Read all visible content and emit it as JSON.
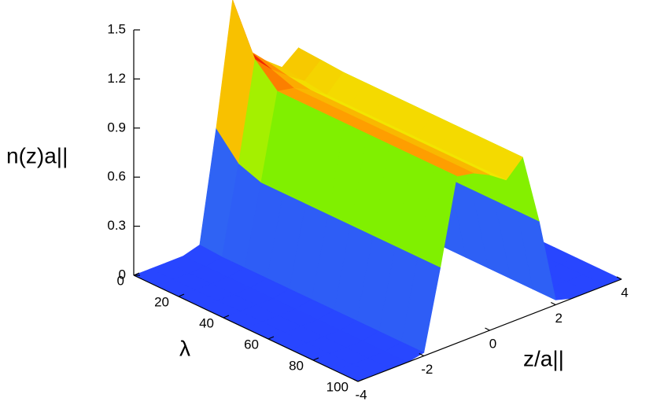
{
  "chart_data": {
    "type": "surface",
    "zlabel": "n(z)a||",
    "xlabel": "λ",
    "ylabel": "z/a||",
    "x": [
      0,
      10,
      20,
      30,
      40,
      50,
      60,
      70,
      80,
      90,
      100
    ],
    "y": [
      -4,
      -3.5,
      -3,
      -2.5,
      -2,
      -1.5,
      -1,
      -0.5,
      0,
      0.5,
      1,
      1.5,
      2,
      2.5,
      3,
      3.5,
      4
    ],
    "values": [
      [
        0,
        0,
        0,
        0,
        0.03,
        0.7,
        1.45,
        1.1,
        1.0,
        0.92,
        1.0,
        0.55,
        0.03,
        0,
        0,
        0,
        0
      ],
      [
        0,
        0,
        0,
        0,
        0.02,
        0.55,
        1.15,
        1.05,
        0.97,
        0.9,
        0.99,
        0.55,
        0.03,
        0,
        0,
        0,
        0
      ],
      [
        0,
        0,
        0,
        0,
        0.02,
        0.5,
        1.02,
        1.0,
        0.95,
        0.88,
        0.98,
        0.55,
        0.03,
        0,
        0,
        0,
        0
      ],
      [
        0,
        0,
        0,
        0,
        0.02,
        0.5,
        1.02,
        1.0,
        0.95,
        0.88,
        0.98,
        0.55,
        0.03,
        0,
        0,
        0,
        0
      ],
      [
        0,
        0,
        0,
        0,
        0.02,
        0.5,
        1.02,
        1.0,
        0.95,
        0.88,
        0.98,
        0.55,
        0.03,
        0,
        0,
        0,
        0
      ],
      [
        0,
        0,
        0,
        0,
        0.02,
        0.5,
        1.02,
        1.0,
        0.95,
        0.88,
        0.98,
        0.55,
        0.03,
        0,
        0,
        0,
        0
      ],
      [
        0,
        0,
        0,
        0,
        0.02,
        0.5,
        1.02,
        1.0,
        0.95,
        0.88,
        0.98,
        0.55,
        0.03,
        0,
        0,
        0,
        0
      ],
      [
        0,
        0,
        0,
        0,
        0.02,
        0.5,
        1.02,
        1.0,
        0.95,
        0.88,
        0.98,
        0.55,
        0.03,
        0,
        0,
        0,
        0
      ],
      [
        0,
        0,
        0,
        0,
        0.02,
        0.5,
        1.02,
        1.0,
        0.95,
        0.88,
        0.98,
        0.55,
        0.03,
        0,
        0,
        0,
        0
      ],
      [
        0,
        0,
        0,
        0,
        0.02,
        0.5,
        1.02,
        1.0,
        0.95,
        0.88,
        0.98,
        0.55,
        0.03,
        0,
        0,
        0,
        0
      ],
      [
        0,
        0,
        0,
        0,
        0.02,
        0.5,
        1.02,
        1.0,
        0.95,
        0.88,
        0.98,
        0.55,
        0.03,
        0,
        0,
        0,
        0
      ]
    ],
    "xlim": [
      0,
      100
    ],
    "ylim": [
      -4,
      4
    ],
    "zlim": [
      0,
      1.5
    ],
    "xticks": [
      0,
      20,
      40,
      60,
      80,
      100
    ],
    "yticks": [
      -4,
      -2,
      0,
      2,
      4
    ],
    "zticks": [
      0,
      0.3,
      0.6,
      0.9,
      1.2,
      1.5
    ]
  }
}
